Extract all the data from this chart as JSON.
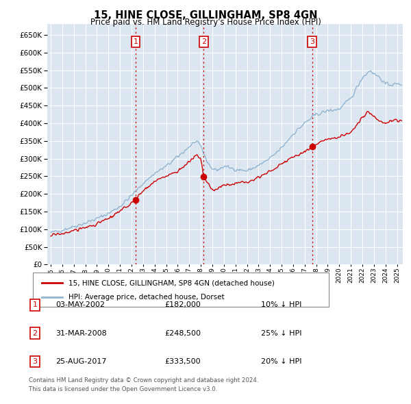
{
  "title": "15, HINE CLOSE, GILLINGHAM, SP8 4GN",
  "subtitle": "Price paid vs. HM Land Registry's House Price Index (HPI)",
  "legend_label_red": "15, HINE CLOSE, GILLINGHAM, SP8 4GN (detached house)",
  "legend_label_blue": "HPI: Average price, detached house, Dorset",
  "transactions": [
    {
      "num": 1,
      "date": "03-MAY-2002",
      "price": 182000,
      "hpi_pct": "10% ↓ HPI",
      "year": 2002.35
    },
    {
      "num": 2,
      "date": "31-MAR-2008",
      "price": 248500,
      "hpi_pct": "25% ↓ HPI",
      "year": 2008.25
    },
    {
      "num": 3,
      "date": "25-AUG-2017",
      "price": 333500,
      "hpi_pct": "20% ↓ HPI",
      "year": 2017.65
    }
  ],
  "footer_line1": "Contains HM Land Registry data © Crown copyright and database right 2024.",
  "footer_line2": "This data is licensed under the Open Government Licence v3.0.",
  "ylim": [
    0,
    680000
  ],
  "yticks": [
    0,
    50000,
    100000,
    150000,
    200000,
    250000,
    300000,
    350000,
    400000,
    450000,
    500000,
    550000,
    600000,
    650000
  ],
  "xlim_start": 1994.7,
  "xlim_end": 2025.5,
  "background_color": "#dce6f1",
  "grid_color": "#ffffff",
  "red_color": "#cc0000",
  "blue_color": "#92b4d0",
  "vline_color": "#cc0000"
}
